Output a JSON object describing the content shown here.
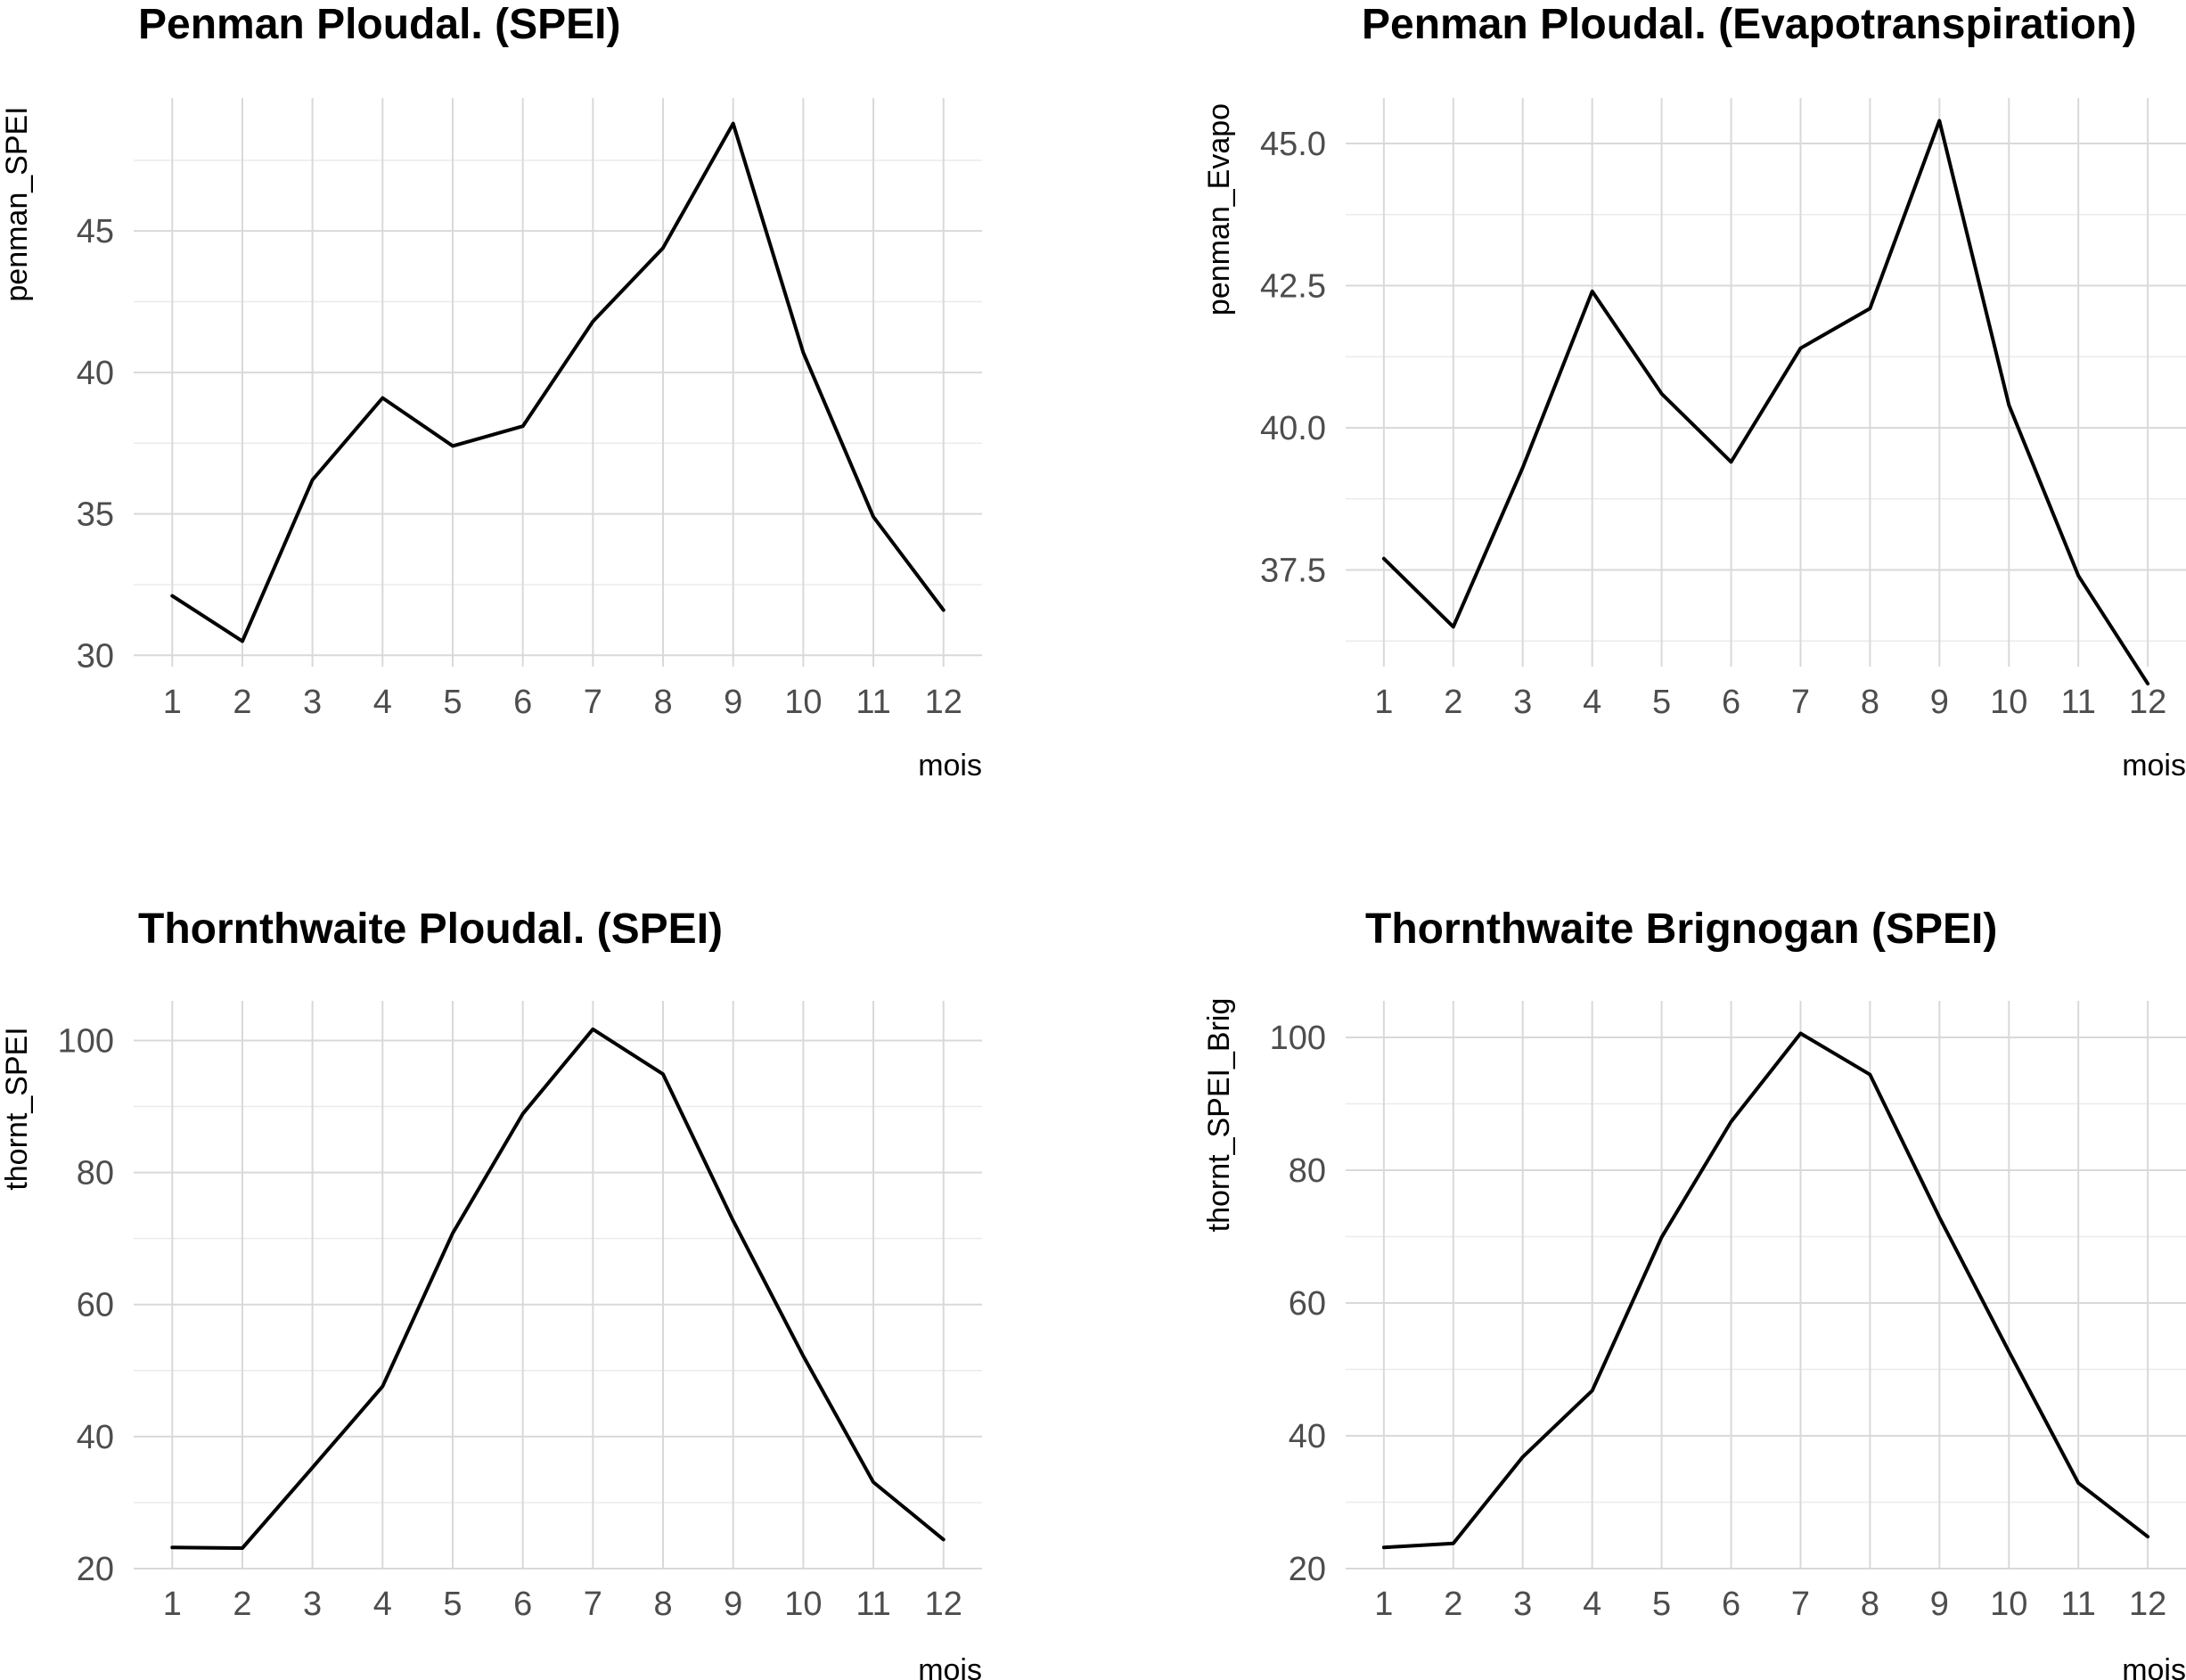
{
  "chart_data": [
    {
      "type": "line",
      "title": "Penman Ploudal. (SPEI)",
      "xlabel": "mois",
      "ylabel": "penman_SPEI",
      "x": [
        1,
        2,
        3,
        4,
        5,
        6,
        7,
        8,
        9,
        10,
        11,
        12
      ],
      "x_ticks": [
        "1",
        "2",
        "3",
        "4",
        "5",
        "6",
        "7",
        "8",
        "9",
        "10",
        "11",
        "12"
      ],
      "y_ticks": [
        "30",
        "35",
        "40",
        "45"
      ],
      "xlim": [
        0.45,
        12.55
      ],
      "ylim": [
        29.6,
        49.7
      ],
      "series": [
        {
          "values": [
            32.1,
            30.5,
            36.2,
            39.1,
            37.4,
            38.1,
            41.8,
            44.4,
            48.8,
            40.7,
            34.9,
            31.6
          ]
        }
      ],
      "grid": true
    },
    {
      "type": "line",
      "title": "Penman Ploudal. (Evapotranspiration)",
      "xlabel": "mois",
      "ylabel": "penman_Evapo",
      "x": [
        1,
        2,
        3,
        4,
        5,
        6,
        7,
        8,
        9,
        10,
        11,
        12
      ],
      "x_ticks": [
        "1",
        "2",
        "3",
        "4",
        "5",
        "6",
        "7",
        "8",
        "9",
        "10",
        "11",
        "12"
      ],
      "y_ticks": [
        "37.5",
        "40.0",
        "42.5",
        "45.0"
      ],
      "xlim": [
        0.45,
        12.55
      ],
      "ylim": [
        35.8,
        45.8
      ],
      "series": [
        {
          "values": [
            37.7,
            36.5,
            39.3,
            42.4,
            40.6,
            39.4,
            41.4,
            42.1,
            45.4,
            40.4,
            37.4,
            35.5
          ]
        }
      ],
      "grid": true
    },
    {
      "type": "line",
      "title": "Thornthwaite Ploudal. (SPEI)",
      "xlabel": "mois",
      "ylabel": "thornt_SPEI",
      "x": [
        1,
        2,
        3,
        4,
        5,
        6,
        7,
        8,
        9,
        10,
        11,
        12
      ],
      "x_ticks": [
        "1",
        "2",
        "3",
        "4",
        "5",
        "6",
        "7",
        "8",
        "9",
        "10",
        "11",
        "12"
      ],
      "y_ticks": [
        "20",
        "40",
        "60",
        "80",
        "100"
      ],
      "xlim": [
        0.45,
        12.55
      ],
      "ylim": [
        20,
        106
      ],
      "series": [
        {
          "values": [
            23.2,
            23.1,
            35.3,
            47.6,
            70.8,
            88.9,
            101.7,
            94.9,
            72.7,
            52.2,
            33.1,
            24.4
          ]
        }
      ],
      "grid": true
    },
    {
      "type": "line",
      "title": "Thornthwaite Brignogan (SPEI)",
      "xlabel": "mois",
      "ylabel": "thornt_SPEI_Brig",
      "x": [
        1,
        2,
        3,
        4,
        5,
        6,
        7,
        8,
        9,
        10,
        11,
        12
      ],
      "x_ticks": [
        "1",
        "2",
        "3",
        "4",
        "5",
        "6",
        "7",
        "8",
        "9",
        "10",
        "11",
        "12"
      ],
      "y_ticks": [
        "20",
        "40",
        "60",
        "80",
        "100"
      ],
      "xlim": [
        0.45,
        12.55
      ],
      "ylim": [
        20,
        105.5
      ],
      "series": [
        {
          "values": [
            23.2,
            23.8,
            36.8,
            46.8,
            69.9,
            87.3,
            100.6,
            94.4,
            72.9,
            52.7,
            32.9,
            24.8
          ]
        }
      ],
      "grid": true
    }
  ]
}
